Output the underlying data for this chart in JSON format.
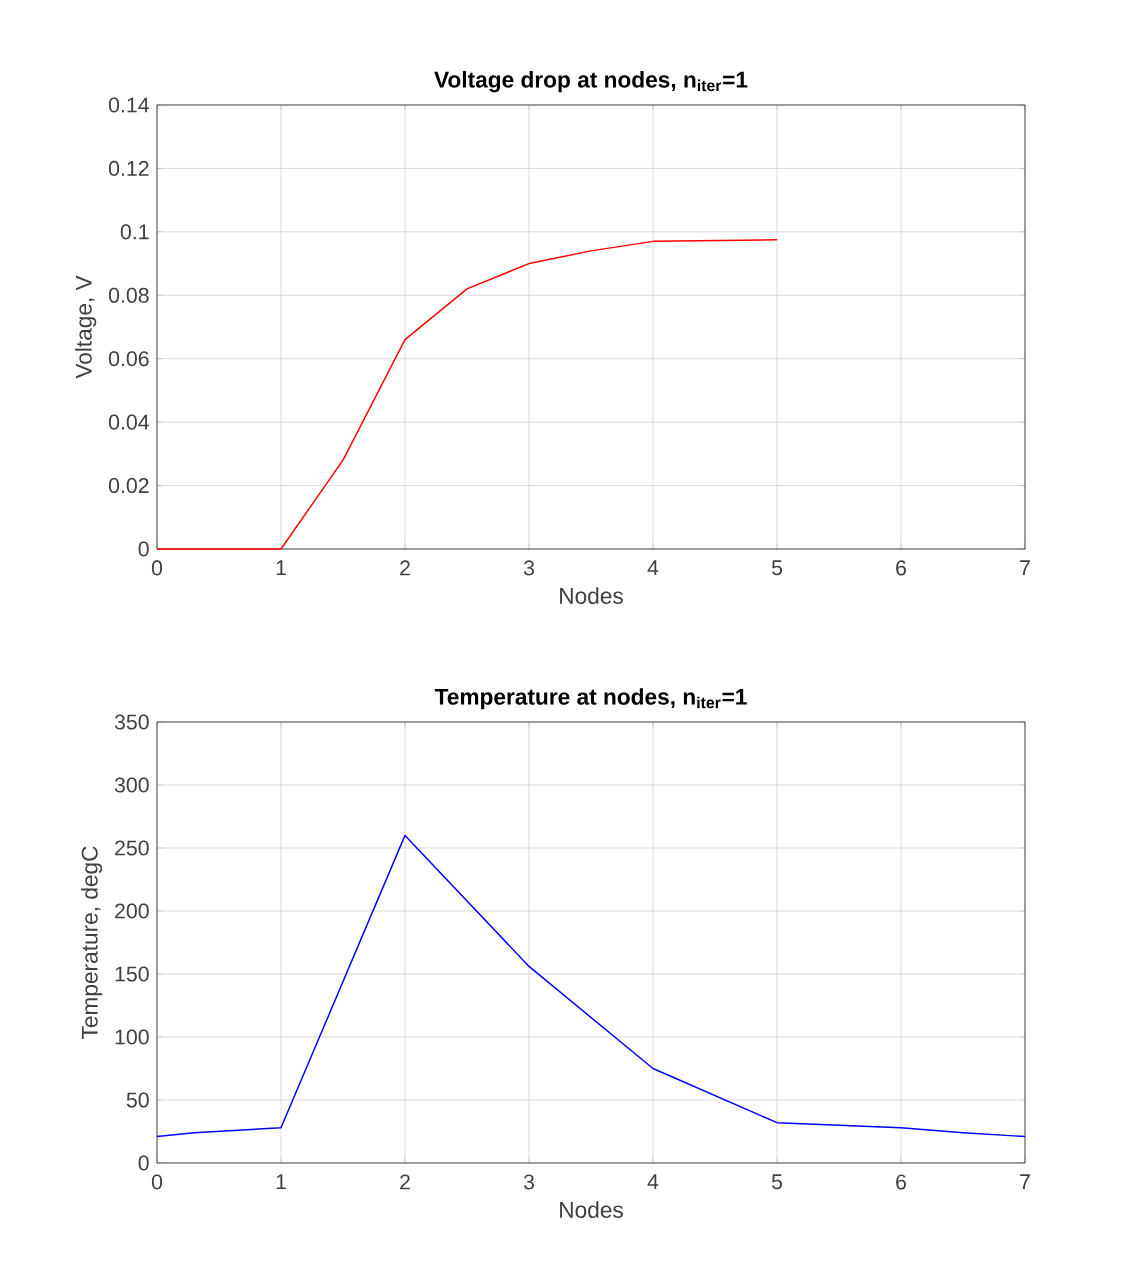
{
  "chart_data": [
    {
      "type": "line",
      "title": "**Voltage drop at nodes, n$_{iter}$=1**",
      "xlabel": "Nodes",
      "ylabel": "Voltage, V",
      "x": [
        0,
        1,
        1.5,
        2,
        2.5,
        3,
        3.5,
        4,
        5
      ],
      "series": [
        {
          "color": "#ff0000",
          "values": [
            0,
            0,
            0.028,
            0.066,
            0.082,
            0.09,
            0.094,
            0.097,
            0.0975
          ]
        }
      ],
      "xlim": [
        0,
        7
      ],
      "xticks": [
        0,
        1,
        2,
        3,
        4,
        5,
        6,
        7
      ],
      "ylim": [
        0,
        0.14
      ],
      "yticks": [
        0,
        0.02,
        0.04,
        0.06,
        0.08,
        0.1,
        0.12,
        0.14
      ],
      "grid": true,
      "line_style": "solid"
    },
    {
      "type": "line",
      "title": "**Temperature at nodes, n$_{iter}$=1**",
      "xlabel": "Nodes",
      "ylabel": "Temperature, degC",
      "x": [
        0,
        0.3,
        1,
        2,
        3,
        4,
        5,
        5.5,
        6,
        6.5,
        7
      ],
      "series": [
        {
          "color": "#0000ff",
          "values": [
            21,
            24,
            28,
            260,
            156,
            75,
            32,
            30,
            28,
            24,
            21
          ]
        }
      ],
      "xlim": [
        0,
        7
      ],
      "xticks": [
        0,
        1,
        2,
        3,
        4,
        5,
        6,
        7
      ],
      "ylim": [
        0,
        350
      ],
      "yticks": [
        0,
        50,
        100,
        150,
        200,
        250,
        300,
        350
      ],
      "grid": true,
      "line_style": "solid"
    }
  ]
}
